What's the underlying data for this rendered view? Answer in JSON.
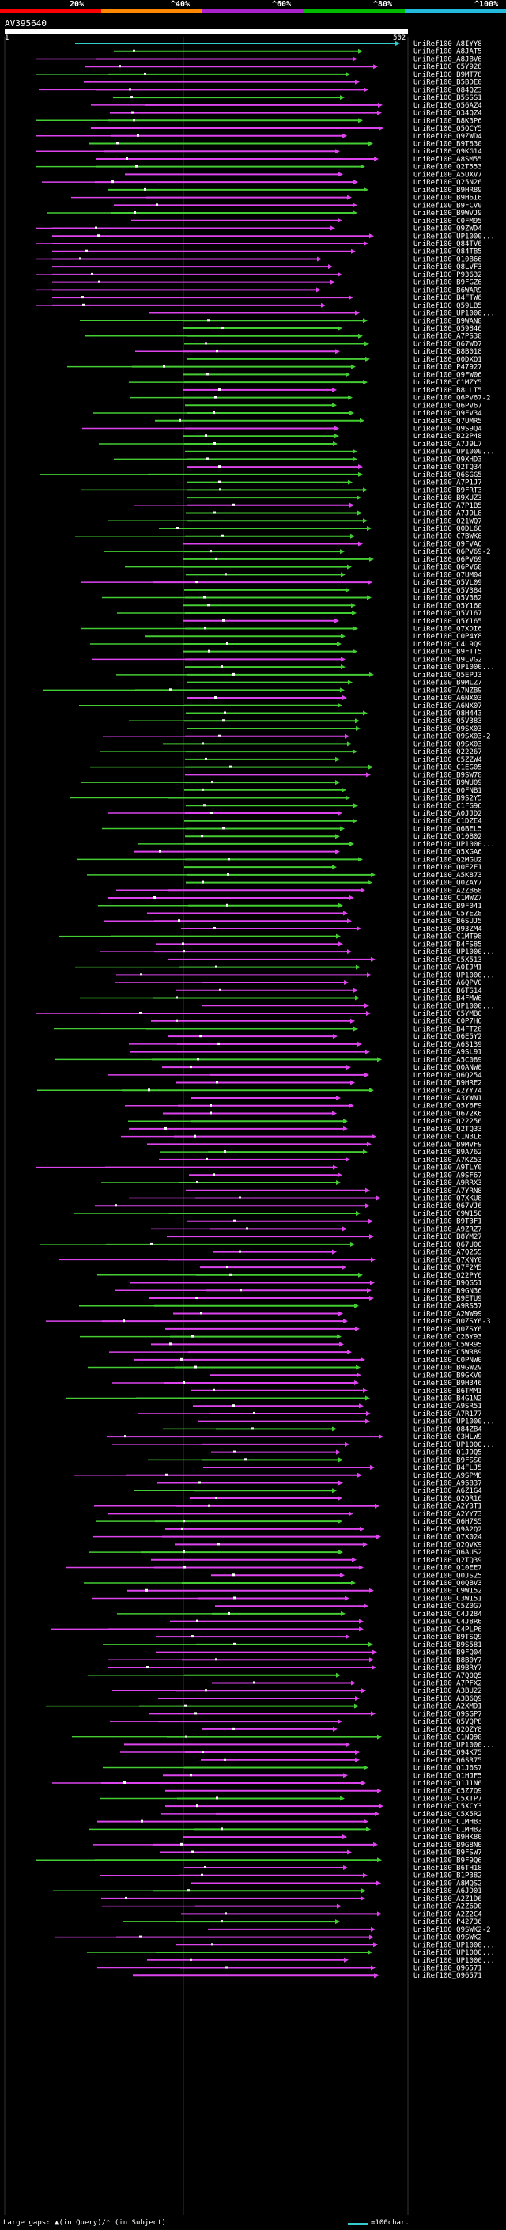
{
  "header": {
    "legend": [
      {
        "label": "20%",
        "color": "#ff0000"
      },
      {
        "label": "^40%",
        "color": "#ff8800"
      },
      {
        "label": "^60%",
        "color": "#aa22cc"
      },
      {
        "label": "^80%",
        "color": "#00bb00"
      },
      {
        "label": "^100%",
        "color": "#22bbdd"
      }
    ]
  },
  "query": {
    "name": "AV395640",
    "start": "1",
    "end": "502"
  },
  "footer": {
    "gaps_text": "Large gaps: ▲(in Query)/⌃ (in Subject)",
    "scale_text": "=100char."
  },
  "colors": {
    "magenta": "#dd44ee",
    "green": "#44cc33",
    "cyan": "#33cccc",
    "dot": "#ffffff"
  },
  "hits": [
    "UniRef100_A8IYY8",
    "UniRef100_A8JAT5",
    "UniRef100_A8JBV6",
    "UniRef100_C5Y928",
    "UniRef100_B9MT78",
    "UniRef100_B5BDE0",
    "UniRef100_Q84QZ3",
    "UniRef100_B5SSS1",
    "UniRef100_Q56AZ4",
    "UniRef100_Q34QZ4",
    "UniRef100_B8K3P6",
    "UniRef100_Q5QCY5",
    "UniRef100_Q9ZWD4",
    "UniRef100_B9T830",
    "UniRef100_Q9KG14",
    "UniRef100_A8SM55",
    "UniRef100_Q2T553",
    "UniRef100_A5UXV7",
    "UniRef100_Q25N26",
    "UniRef100_B9HR89",
    "UniRef100_B9H6I6",
    "UniRef100_B9FCV0",
    "UniRef100_B9WVJ9",
    "UniRef100_C0FM95",
    "UniRef100_Q9ZWD4",
    "UniRef100_UP1000...",
    "UniRef100_Q84TV6",
    "UniRef100_Q84TB5",
    "UniRef100_Q10B66",
    "UniRef100_Q8LVF3",
    "UniRef100_P93632",
    "UniRef100_B9FGZ6",
    "UniRef100_B6WAR9",
    "UniRef100_B4FTW6",
    "UniRef100_Q59LB5",
    "UniRef100_UP1000...",
    "UniRef100_B9WAN8",
    "UniRef100_Q59846",
    "UniRef100_A7PS38",
    "UniRef100_Q67WD7",
    "UniRef100_B8B018",
    "UniRef100_Q0DXQ1",
    "UniRef100_P47927",
    "UniRef100_Q9FW06",
    "UniRef100_C1MZY5",
    "UniRef100_B8LLT5",
    "UniRef100_Q6PV67-2",
    "UniRef100_Q6PV67",
    "UniRef100_Q9FV34",
    "UniRef100_Q7UMR5",
    "UniRef100_Q9S9Q4",
    "UniRef100_B22P48",
    "UniRef100_A7J9L7",
    "UniRef100_UP1000...",
    "UniRef100_Q9XHD3",
    "UniRef100_Q2TQ34",
    "UniRef100_Q6SGG5",
    "UniRef100_A7P1J7",
    "UniRef100_B9FRT3",
    "UniRef100_B9XUZ3",
    "UniRef100_A7P1B5",
    "UniRef100_A7J9L8",
    "UniRef100_Q21WQ7",
    "UniRef100_Q0DL60",
    "UniRef100_C7BWK6",
    "UniRef100_Q9FVA6",
    "UniRef100_Q6PV69-2",
    "UniRef100_Q6PV69",
    "UniRef100_Q6PV68",
    "UniRef100_Q7UM04",
    "UniRef100_Q5VL09",
    "UniRef100_Q5V384",
    "UniRef100_Q5V382",
    "UniRef100_Q5Y160",
    "UniRef100_Q5V167",
    "UniRef100_Q5Y165",
    "UniRef100_Q7XDI6",
    "UniRef100_C0P4Y8",
    "UniRef100_C4L9Q9",
    "UniRef100_B9FTT5",
    "UniRef100_Q9LVG2",
    "UniRef100_UP1000...",
    "UniRef100_Q5EPJ3",
    "UniRef100_B9MLZ7",
    "UniRef100_A7NZB9",
    "UniRef100_A6NX03",
    "UniRef100_A6NX07",
    "UniRef100_Q8H443",
    "UniRef100_Q5V383",
    "UniRef100_Q9SX03",
    "UniRef100_Q9SX03-2",
    "UniRef100_Q9SX03",
    "UniRef100_Q22267",
    "UniRef100_C5ZZW4",
    "UniRef100_C1EG05",
    "UniRef100_B9SW78",
    "UniRef100_B9WU09",
    "UniRef100_Q0FNB1",
    "UniRef100_B9S2Y5",
    "UniRef100_C1FG96",
    "UniRef100_A0JJD2",
    "UniRef100_C1DZE4",
    "UniRef100_Q6BEL5",
    "UniRef100_Q10B02",
    "UniRef100_UP1000...",
    "UniRef100_Q5XGA6",
    "UniRef100_Q2MGU2",
    "UniRef100_Q0E2E1",
    "UniRef100_A5K873",
    "UniRef100_Q0ZAY7",
    "UniRef100_A2ZB68",
    "UniRef100_C1MWZ7",
    "UniRef100_B9F041",
    "UniRef100_C5YEZ8",
    "UniRef100_B6SUJ5",
    "UniRef100_Q93ZM4",
    "UniRef100_C1MT98",
    "UniRef100_B4FS85",
    "UniRef100_UP1000...",
    "UniRef100_C5X513",
    "UniRef100_A0IJM1",
    "UniRef100_UP1000...",
    "UniRef100_A6QPV0",
    "UniRef100_B6TS14",
    "UniRef100_B4FMW6",
    "UniRef100_UP1000...",
    "UniRef100_C5YMB0",
    "UniRef100_C0P7H6",
    "UniRef100_B4FT20",
    "UniRef100_Q6E5Y2",
    "UniRef100_A6S139",
    "UniRef100_A9SL91",
    "UniRef100_A5C089",
    "UniRef100_Q0ANW0",
    "UniRef100_Q6Q254",
    "UniRef100_B9HRE2",
    "UniRef100_A2YY74",
    "UniRef100_A3YWN1",
    "UniRef100_Q5Y6F9",
    "UniRef100_Q672K6",
    "UniRef100_Q22256",
    "UniRef100_Q2TQ33",
    "UniRef100_C1N3L6",
    "UniRef100_B9MVF9",
    "UniRef100_B9A762",
    "UniRef100_A7KZ53",
    "UniRef100_A9TLY0",
    "UniRef100_A9SF67",
    "UniRef100_A9RRX3",
    "UniRef100_A7YRN8",
    "UniRef100_Q7XKU8",
    "UniRef100_Q67VJ6",
    "UniRef100_C9W150",
    "UniRef100_B9T3F1",
    "UniRef100_A9ZRZ7",
    "UniRef100_B8YM27",
    "UniRef100_Q67U00",
    "UniRef100_A7Q255",
    "UniRef100_Q7XNY0",
    "UniRef100_Q7F2M5",
    "UniRef100_Q22PY6",
    "UniRef100_B9QG51",
    "UniRef100_B9GN36",
    "UniRef100_B9ETU9",
    "UniRef100_A9RS57",
    "UniRef100_A2WW99",
    "UniRef100_Q0ZSY6-3",
    "UniRef100_Q0ZSY6",
    "UniRef100_C2BY93",
    "UniRef100_C5WR95",
    "UniRef100_C5WR89",
    "UniRef100_C0PNW0",
    "UniRef100_B9GW2V",
    "UniRef100_B9GKV0",
    "UniRef100_B9H346",
    "UniRef100_B6TMM1",
    "UniRef100_B4G1N2",
    "UniRef100_A9SR51",
    "UniRef100_A7R177",
    "UniRef100_UP1000...",
    "UniRef100_Q84ZB4",
    "UniRef100_C3HLW9",
    "UniRef100_UP1000...",
    "UniRef100_Q1J9Q5",
    "UniRef100_B9FSS0",
    "UniRef100_B4FLJ5",
    "UniRef100_A9SPM8",
    "UniRef100_A9S837",
    "UniRef100_A6Z1G4",
    "UniRef100_Q2QR16",
    "UniRef100_A2Y3T1",
    "UniRef100_A2YY73",
    "UniRef100_Q6H7S5",
    "UniRef100_Q9A2Q2",
    "UniRef100_Q7X024",
    "UniRef100_Q2QVK9",
    "UniRef100_Q6AUS2",
    "UniRef100_Q2TQ39",
    "UniRef100_Q10EE7",
    "UniRef100_Q0JS25",
    "UniRef100_Q0QBV3",
    "UniRef100_C9W152",
    "UniRef100_C3W151",
    "UniRef100_C5Z0G7",
    "UniRef100_C4J284",
    "UniRef100_C4J8R6",
    "UniRef100_C4PLP6",
    "UniRef100_B9TSQ9",
    "UniRef100_B9S581",
    "UniRef100_B9FQ04",
    "UniRef100_B8B0Y7",
    "UniRef100_B9BRY7",
    "UniRef100_A7Q0Q5",
    "UniRef100_A7PFX2",
    "UniRef100_A3BU22",
    "UniRef100_A3B6Q9",
    "UniRef100_A2XMD1",
    "UniRef100_Q9SGP7",
    "UniRef100_Q5VQP8",
    "UniRef100_Q2QZY8",
    "UniRef100_C1NQ98",
    "UniRef100_UP1000...",
    "UniRef100_Q94K75",
    "UniRef100_Q6SR75",
    "UniRef100_Q1J6S7",
    "UniRef100_Q1HJF5",
    "UniRef100_Q1J1N6",
    "UniRef100_C5Z7Q9",
    "UniRef100_C5XTP7",
    "UniRef100_C5XCY3",
    "UniRef100_C5X5R2",
    "UniRef100_C1MHB3",
    "UniRef100_C1MHB2",
    "UniRef100_B9HK80",
    "UniRef100_B9G8N0",
    "UniRef100_B9FSW7",
    "UniRef100_B9F9Q6",
    "UniRef100_B6TH18",
    "UniRef100_B1P382",
    "UniRef100_A8MQS2",
    "UniRef100_A6JD01",
    "UniRef100_A2Z1D6",
    "UniRef100_A2Z6D0",
    "UniRef100_A2Z2C4",
    "UniRef100_P42736",
    "UniRef100_Q9SWK2-2",
    "UniRef100_Q9SWK2",
    "UniRef100_UP1000...",
    "UniRef100_UP1000...",
    "UniRef100_UP1000...",
    "UniRef100_Q96571",
    "UniRef100_Q96571"
  ]
}
